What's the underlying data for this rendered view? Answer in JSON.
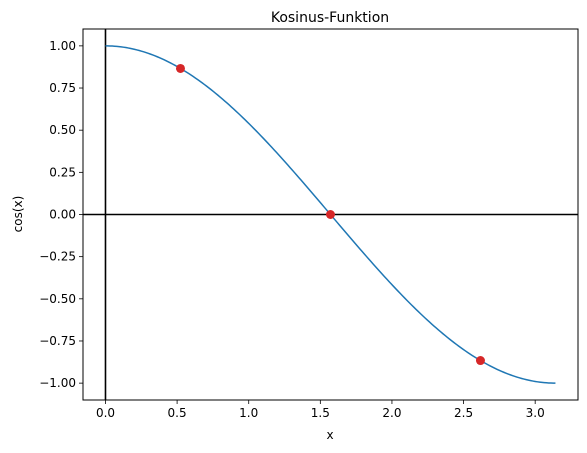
{
  "chart_data": {
    "type": "line",
    "title": "Kosinus-Funktion",
    "xlabel": "x",
    "ylabel": "cos(x)",
    "xlim": [
      -0.157,
      3.299
    ],
    "ylim": [
      -1.1,
      1.1
    ],
    "x_ticks": [
      0.0,
      0.5,
      1.0,
      1.5,
      2.0,
      2.5,
      3.0
    ],
    "x_tick_labels": [
      "0.0",
      "0.5",
      "1.0",
      "1.5",
      "2.0",
      "2.5",
      "3.0"
    ],
    "y_ticks": [
      1.0,
      0.75,
      0.5,
      0.25,
      0.0,
      -0.25,
      -0.5,
      -0.75,
      -1.0
    ],
    "y_tick_labels": [
      "1.00",
      "0.75",
      "0.50",
      "0.25",
      "0.00",
      "−0.25",
      "−0.50",
      "−0.75",
      "−1.00"
    ],
    "grid": false,
    "series": [
      {
        "color": "#1f77b4",
        "x_range": [
          0,
          3.14159
        ],
        "function": "cos(x)"
      }
    ],
    "highlighted_points": {
      "color": "#d62728",
      "x": [
        0.5236,
        1.5708,
        2.618
      ],
      "y": [
        0.866,
        0.0,
        -0.866
      ]
    },
    "reference_lines": {
      "color": "#000000",
      "horizontal_y": 0,
      "vertical_x": 0
    }
  }
}
